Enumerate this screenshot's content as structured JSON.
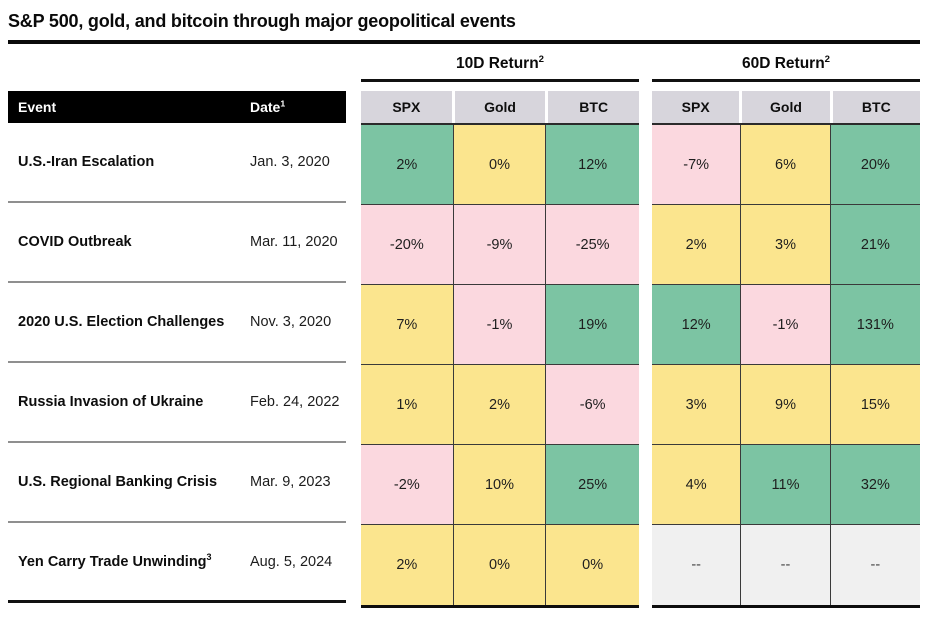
{
  "title": "S&P 500, gold, and bitcoin through major geopolitical events",
  "colors": {
    "green": "#7CC4A3",
    "yellow": "#FBE58E",
    "pink": "#FBD8DF",
    "gray": "#F0F0F0",
    "header": "#D7D5DC"
  },
  "chart_data": {
    "type": "table",
    "title": "S&P 500, gold, and bitcoin through major geopolitical events",
    "event_header": "Event",
    "date_header": {
      "label": "Date",
      "sup": "1"
    },
    "groups": [
      {
        "label": "10D Return",
        "sup": "2",
        "columns": [
          "SPX",
          "Gold",
          "BTC"
        ]
      },
      {
        "label": "60D Return",
        "sup": "2",
        "columns": [
          "SPX",
          "Gold",
          "BTC"
        ]
      }
    ],
    "rows": [
      {
        "event": "U.S.-Iran Escalation",
        "event_sup": "",
        "date": "Jan. 3, 2020",
        "d10": [
          {
            "v": "2%",
            "c": "green"
          },
          {
            "v": "0%",
            "c": "yellow"
          },
          {
            "v": "12%",
            "c": "green"
          }
        ],
        "d60": [
          {
            "v": "-7%",
            "c": "pink"
          },
          {
            "v": "6%",
            "c": "yellow"
          },
          {
            "v": "20%",
            "c": "green"
          }
        ]
      },
      {
        "event": "COVID Outbreak",
        "event_sup": "",
        "date": "Mar. 11, 2020",
        "d10": [
          {
            "v": "-20%",
            "c": "pink"
          },
          {
            "v": "-9%",
            "c": "pink"
          },
          {
            "v": "-25%",
            "c": "pink"
          }
        ],
        "d60": [
          {
            "v": "2%",
            "c": "yellow"
          },
          {
            "v": "3%",
            "c": "yellow"
          },
          {
            "v": "21%",
            "c": "green"
          }
        ]
      },
      {
        "event": "2020 U.S. Election Challenges",
        "event_sup": "",
        "date": "Nov. 3, 2020",
        "d10": [
          {
            "v": "7%",
            "c": "yellow"
          },
          {
            "v": "-1%",
            "c": "pink"
          },
          {
            "v": "19%",
            "c": "green"
          }
        ],
        "d60": [
          {
            "v": "12%",
            "c": "green"
          },
          {
            "v": "-1%",
            "c": "pink"
          },
          {
            "v": "131%",
            "c": "green"
          }
        ]
      },
      {
        "event": "Russia Invasion of Ukraine",
        "event_sup": "",
        "date": "Feb. 24, 2022",
        "d10": [
          {
            "v": "1%",
            "c": "yellow"
          },
          {
            "v": "2%",
            "c": "yellow"
          },
          {
            "v": "-6%",
            "c": "pink"
          }
        ],
        "d60": [
          {
            "v": "3%",
            "c": "yellow"
          },
          {
            "v": "9%",
            "c": "yellow"
          },
          {
            "v": "15%",
            "c": "yellow"
          }
        ]
      },
      {
        "event": "U.S. Regional Banking Crisis",
        "event_sup": "",
        "date": "Mar. 9, 2023",
        "d10": [
          {
            "v": "-2%",
            "c": "pink"
          },
          {
            "v": "10%",
            "c": "yellow"
          },
          {
            "v": "25%",
            "c": "green"
          }
        ],
        "d60": [
          {
            "v": "4%",
            "c": "yellow"
          },
          {
            "v": "11%",
            "c": "green"
          },
          {
            "v": "32%",
            "c": "green"
          }
        ]
      },
      {
        "event": "Yen Carry Trade Unwinding",
        "event_sup": "3",
        "date": "Aug. 5, 2024",
        "d10": [
          {
            "v": "2%",
            "c": "yellow"
          },
          {
            "v": "0%",
            "c": "yellow"
          },
          {
            "v": "0%",
            "c": "yellow"
          }
        ],
        "d60": [
          {
            "v": "--",
            "c": "gray"
          },
          {
            "v": "--",
            "c": "gray"
          },
          {
            "v": "--",
            "c": "gray"
          }
        ]
      }
    ]
  }
}
